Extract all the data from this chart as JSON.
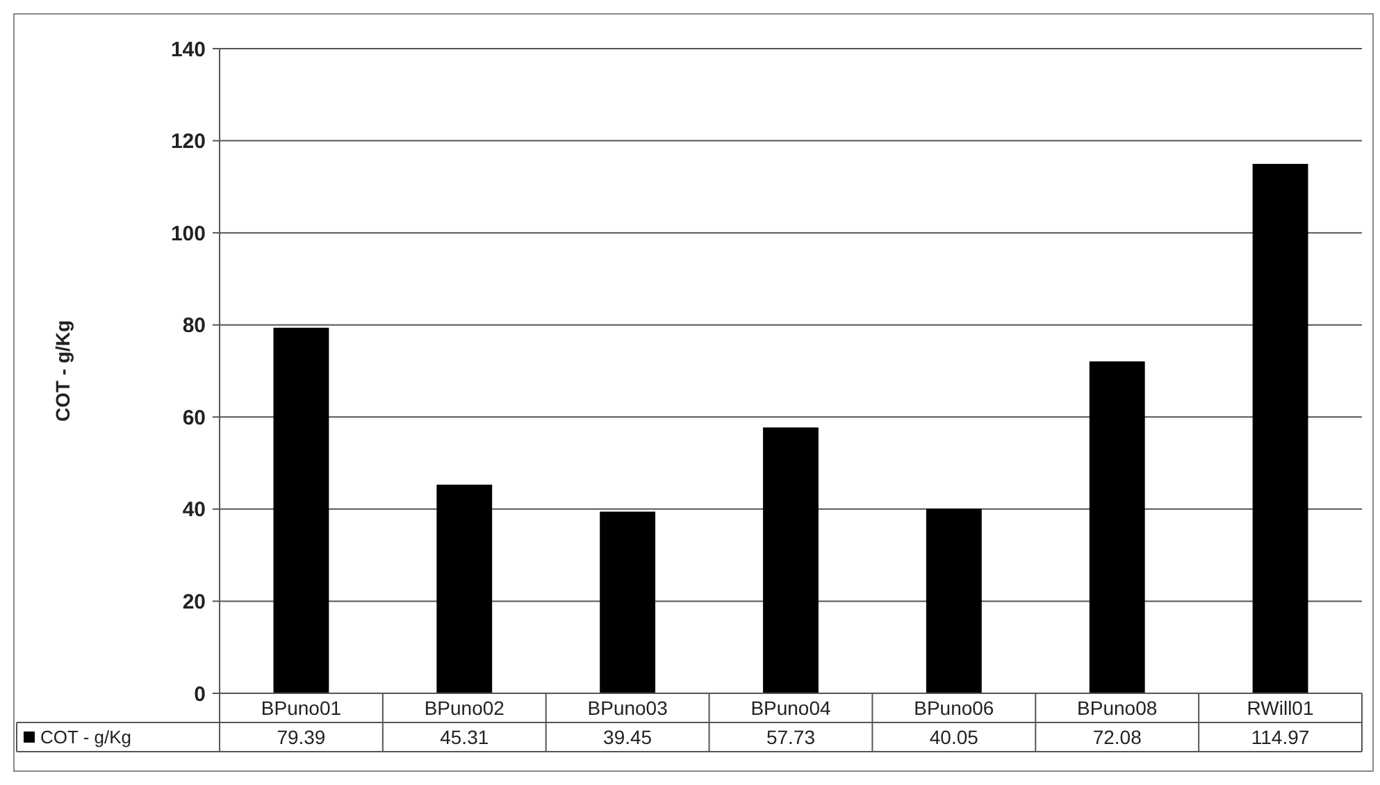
{
  "chart_data": {
    "type": "bar",
    "ylabel": "COT - g/Kg",
    "categories": [
      "BPuno01",
      "BPuno02",
      "BPuno03",
      "BPuno04",
      "BPuno06",
      "BPuno08",
      "RWill01"
    ],
    "series": [
      {
        "name": "COT - g/Kg",
        "color": "#000000",
        "values": [
          79.39,
          45.31,
          39.45,
          57.73,
          40.05,
          72.08,
          114.97
        ]
      }
    ],
    "ylim": [
      0,
      140
    ],
    "yticks": [
      0,
      20,
      40,
      60,
      80,
      100,
      120,
      140
    ],
    "grid": "y",
    "data_labels": true,
    "legend": "bottom left"
  }
}
